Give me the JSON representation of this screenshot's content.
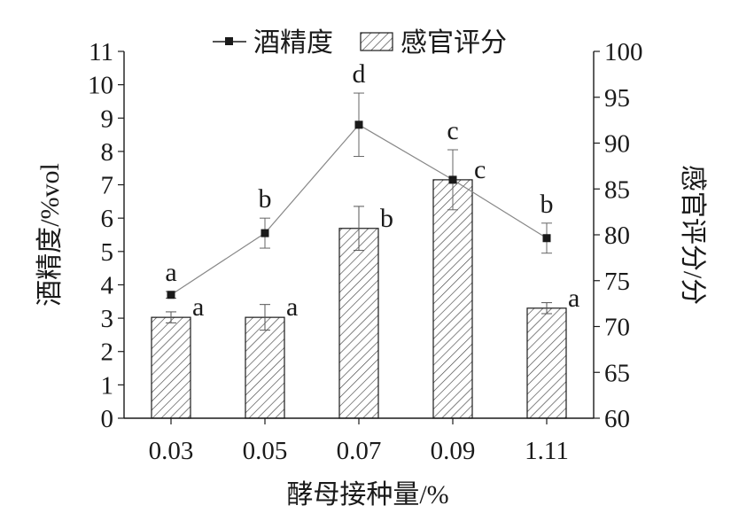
{
  "chart_data": {
    "type": "bar",
    "title": "",
    "categories": [
      "0.03",
      "0.05",
      "0.07",
      "0.09",
      "1.11"
    ],
    "xlabel": "酵母接种量/%",
    "ylabel_left": "酒精度/%vol",
    "ylabel_right": "感官评分/分",
    "ylim_left": [
      0,
      11
    ],
    "ylim_right": [
      60,
      100
    ],
    "yticks_left": [
      "0",
      "1",
      "2",
      "3",
      "4",
      "5",
      "6",
      "7",
      "8",
      "9",
      "10",
      "11"
    ],
    "yticks_right": [
      "60",
      "65",
      "70",
      "75",
      "80",
      "85",
      "90",
      "95",
      "100"
    ],
    "grid": false,
    "legend_position": "top",
    "series": [
      {
        "name": "酒精度",
        "type": "line",
        "axis": "left",
        "color": "#1a1a1a",
        "marker": "square",
        "values": [
          3.7,
          5.55,
          8.8,
          7.15,
          5.4
        ],
        "errors": [
          0.1,
          0.45,
          0.95,
          0.9,
          0.45
        ],
        "labels": [
          "a",
          "b",
          "d",
          "c",
          "b"
        ]
      },
      {
        "name": "感官评分",
        "type": "bar",
        "axis": "right",
        "pattern": "diagonal-hatch",
        "color": "#333333",
        "values": [
          71.0,
          71.0,
          80.7,
          86.0,
          72.0
        ],
        "errors": [
          0.6,
          1.4,
          2.4,
          0.0,
          0.6
        ],
        "labels": [
          "a",
          "a",
          "b",
          "c",
          "a"
        ]
      }
    ]
  }
}
